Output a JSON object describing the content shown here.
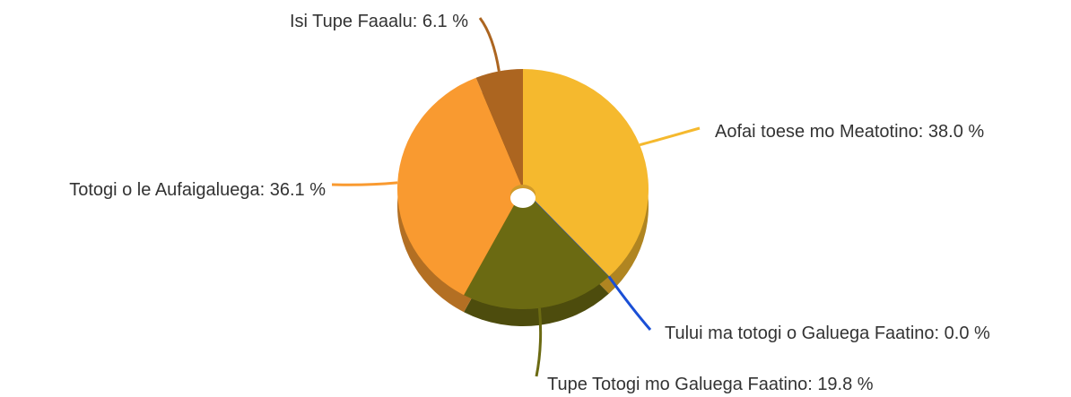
{
  "chart_data": {
    "type": "pie",
    "categories": [
      "Aofai toese mo Meatotino",
      "Tului ma totogi o Galuega Faatino",
      "Tupe Totogi mo Galuega Faatino",
      "Totogi o le Aufaigaluega",
      "Isi Tupe Faaalu"
    ],
    "separator": ": ",
    "values": [
      38.0,
      0.0,
      19.8,
      36.1,
      6.1
    ],
    "value_labels": [
      "38.0 %",
      "0.0 %",
      "19.8 %",
      "36.1 %",
      "6.1 %"
    ],
    "colors": [
      "#f5b92e",
      "#1a4fd6",
      "#6b6a12",
      "#f99a30",
      "#ac6520"
    ]
  }
}
